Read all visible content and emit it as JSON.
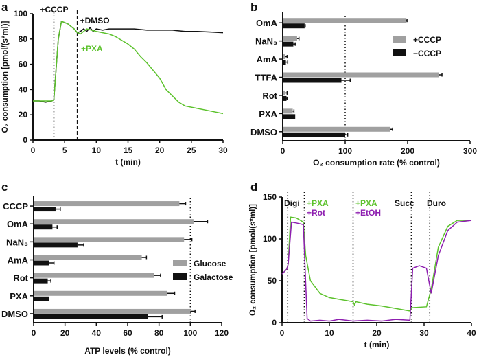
{
  "chart_data": [
    {
      "panel": "a",
      "type": "line",
      "xlabel": "t (min)",
      "ylabel": "O2 consumption [pmol/(s*ml)]",
      "xlim": [
        0,
        30
      ],
      "ylim": [
        0,
        100
      ],
      "xticks": [
        0,
        5,
        10,
        15,
        20,
        25,
        30
      ],
      "yticks": [
        0,
        20,
        40,
        60,
        80,
        100
      ],
      "annotations": [
        {
          "text": "+CCCP",
          "x": 3.3,
          "style": "dotted"
        },
        {
          "text": "+DMSO",
          "x": 7,
          "style": "dashed"
        },
        {
          "text": "+PXA",
          "color": "#5cc22c"
        }
      ],
      "series": [
        {
          "name": "DMSO",
          "color": "#111111",
          "x": [
            0,
            1,
            2,
            3,
            3.3,
            4,
            4.5,
            5.5,
            6.5,
            7,
            7.5,
            8,
            8.5,
            9,
            9.5,
            10,
            11,
            12,
            14,
            16,
            18,
            20,
            22,
            24,
            26,
            28,
            30
          ],
          "y": [
            31,
            31,
            30,
            31,
            32,
            80,
            94,
            92,
            88,
            85,
            86,
            88,
            86,
            89,
            86,
            88,
            87,
            88,
            88,
            88,
            87,
            87,
            87,
            86,
            86,
            85.5,
            85
          ]
        },
        {
          "name": "PXA",
          "color": "#5cc22c",
          "x": [
            0,
            1,
            2,
            3,
            3.3,
            4,
            4.5,
            5.5,
            6.5,
            7,
            7.5,
            8.5,
            10,
            11,
            12,
            13,
            14,
            15,
            16,
            17,
            18,
            19,
            20,
            21,
            22,
            23,
            24,
            26,
            28,
            30
          ],
          "y": [
            31,
            31,
            31,
            31,
            32,
            80,
            94,
            92,
            88,
            85,
            84,
            88,
            86,
            85,
            84,
            82,
            79,
            76,
            72,
            66,
            61,
            55,
            49,
            40,
            35,
            30,
            27,
            25,
            23,
            21
          ]
        }
      ]
    },
    {
      "panel": "b",
      "type": "bar",
      "orientation": "horizontal",
      "xlabel": "O2 consumption rate (% control)",
      "xlim": [
        0,
        300
      ],
      "xticks": [
        0,
        100,
        200,
        300
      ],
      "reference_line": 100,
      "categories": [
        "OmA",
        "NaN3",
        "AmA",
        "TTFA",
        "Rot",
        "PXA",
        "DMSO"
      ],
      "legend_position": "right",
      "series": [
        {
          "name": "+CCCP",
          "color": "#a0a0a0",
          "values": [
            198,
            23,
            4,
            250,
            4,
            16,
            172
          ],
          "errors": [
            1,
            3,
            3,
            5,
            3,
            2,
            4
          ]
        },
        {
          "name": "−CCCP",
          "color": "#111111",
          "values": [
            35,
            17,
            5,
            94,
            6,
            20,
            100
          ],
          "errors": [
            1,
            3,
            3,
            14,
            1,
            0,
            4
          ]
        }
      ]
    },
    {
      "panel": "c",
      "type": "bar",
      "orientation": "horizontal",
      "xlabel": "ATP levels (% control)",
      "xlim": [
        0,
        120
      ],
      "xticks": [
        0,
        20,
        40,
        60,
        80,
        100,
        120
      ],
      "reference_line": 100,
      "categories": [
        "CCCP",
        "OmA",
        "NaN3",
        "AmA",
        "Rot",
        "PXA",
        "DMSO"
      ],
      "legend_position": "right",
      "series": [
        {
          "name": "Glucose",
          "color": "#a0a0a0",
          "values": [
            93,
            102,
            96,
            69,
            77,
            85,
            100
          ],
          "errors": [
            4,
            9,
            5,
            3,
            4,
            5,
            3
          ]
        },
        {
          "name": "Galactose",
          "color": "#111111",
          "values": [
            14,
            12,
            28,
            10,
            9,
            10,
            73
          ],
          "errors": [
            3,
            3,
            4,
            3,
            2,
            0,
            9
          ]
        }
      ]
    },
    {
      "panel": "d",
      "type": "line",
      "xlabel": "t (min)",
      "ylabel": "O2 consumption [pmol/(s*ml)]",
      "xlim": [
        0,
        40
      ],
      "ylim": [
        0,
        150
      ],
      "xticks": [
        0,
        10,
        20,
        30,
        40
      ],
      "yticks": [
        0,
        50,
        100,
        150
      ],
      "annotations": [
        {
          "text": "Digi",
          "x": 1.2
        },
        {
          "text": "+PXA",
          "x": 4.7,
          "color": "#5cc22c"
        },
        {
          "text": "+Rot",
          "x": 4.7,
          "color": "#8e1fb0"
        },
        {
          "text": "+PXA",
          "x": 15,
          "color": "#5cc22c"
        },
        {
          "text": "+EtOH",
          "x": 15,
          "color": "#8e1fb0"
        },
        {
          "text": "Succ",
          "x": 27.3
        },
        {
          "text": "Duro",
          "x": 31.2
        }
      ],
      "series": [
        {
          "name": "PXA",
          "color": "#5cc22c",
          "x": [
            0,
            1,
            1.3,
            1.8,
            3,
            4.5,
            5,
            6,
            8,
            10,
            12,
            15,
            15.3,
            15.6,
            18,
            21,
            24,
            27,
            27.5,
            30.5,
            31.5,
            33,
            35,
            37,
            40
          ],
          "y": [
            58,
            64,
            70,
            126,
            125,
            120,
            80,
            50,
            35,
            30,
            28,
            25,
            21,
            25,
            22,
            20,
            17,
            14,
            18,
            19,
            40,
            90,
            115,
            122,
            122
          ]
        },
        {
          "name": "Rot",
          "color": "#8e1fb0",
          "x": [
            0,
            1,
            1.3,
            2,
            3,
            4.5,
            5.3,
            6,
            8,
            10,
            12,
            15,
            18,
            21,
            24,
            27,
            27.6,
            29,
            30.5,
            31.5,
            33,
            35,
            37,
            40
          ],
          "y": [
            58,
            64,
            70,
            120,
            119,
            117,
            5,
            2,
            3,
            2,
            4,
            2,
            3,
            2,
            4,
            3,
            65,
            68,
            65,
            35,
            80,
            110,
            120,
            122
          ]
        }
      ]
    }
  ],
  "labels": {
    "a": "a",
    "b": "b",
    "c": "c",
    "d": "d"
  }
}
